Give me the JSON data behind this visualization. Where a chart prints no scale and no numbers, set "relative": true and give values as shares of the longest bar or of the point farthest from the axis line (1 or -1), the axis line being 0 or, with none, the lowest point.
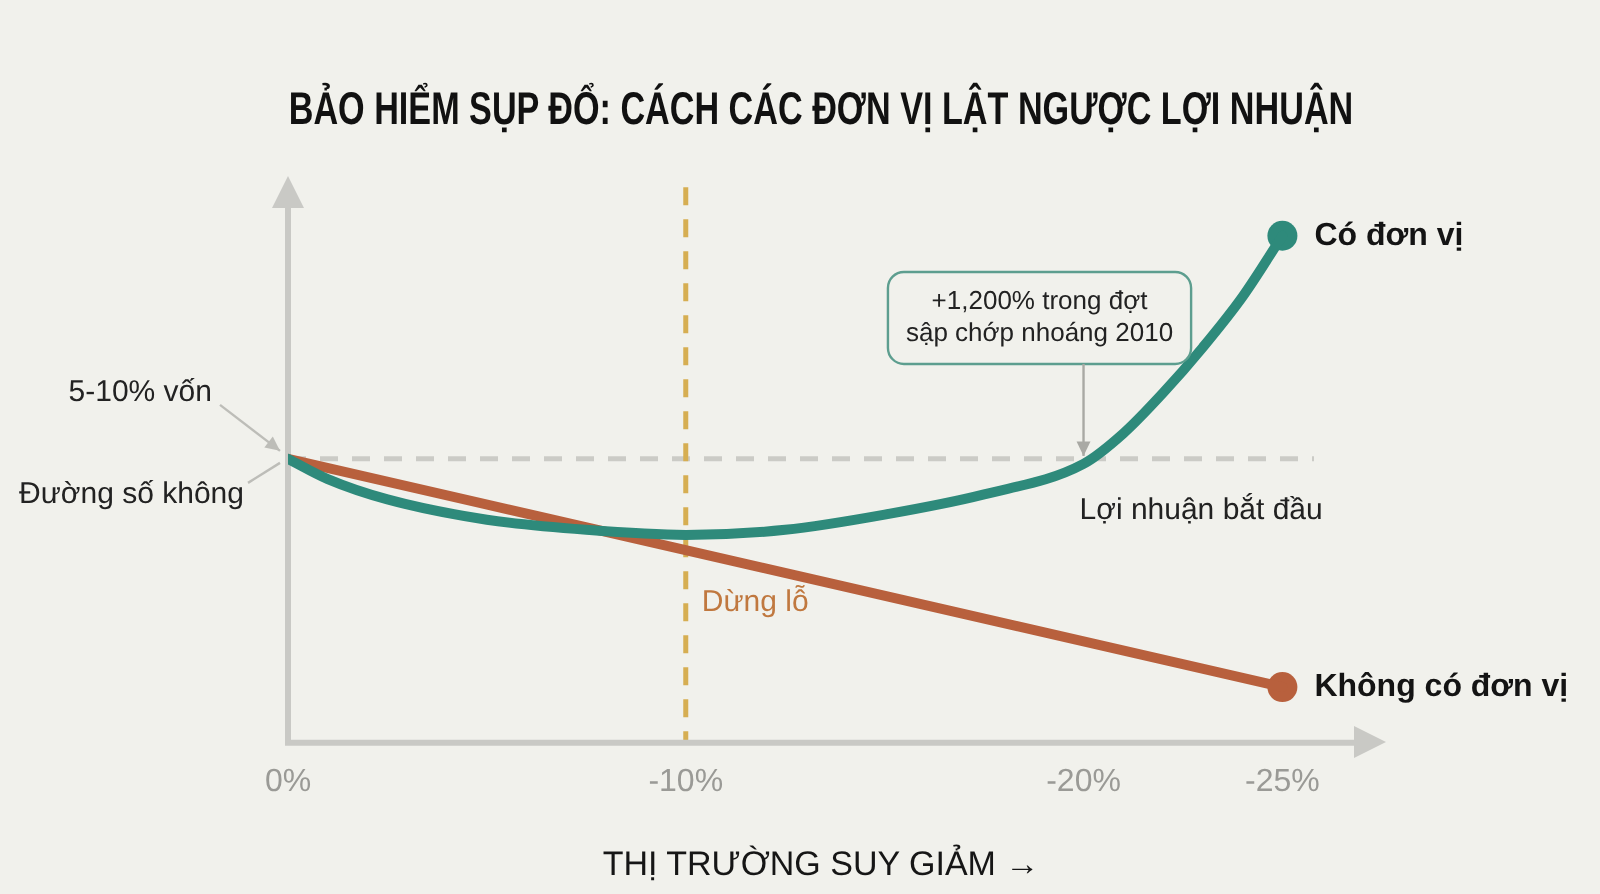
{
  "chart_data": {
    "type": "line",
    "title": "BẢO HIỂM SỤP ĐỔ: CÁCH CÁC ĐƠN VỊ LẬT NGƯỢC LỢI NHUẬN",
    "xlabel": "THỊ TRƯỜNG SUY GIẢM →",
    "relative": true,
    "xlim": [
      0,
      -26.8
    ],
    "xticks": [
      {
        "value": 0,
        "label": "0%"
      },
      {
        "value": -10,
        "label": "-10%"
      },
      {
        "value": -20,
        "label": "-20%"
      },
      {
        "value": -25,
        "label": "-25%"
      }
    ],
    "tick_labels": "x",
    "series": [
      {
        "name": "Có đơn vị",
        "color": "#2e8a7b",
        "x": [
          0,
          -1,
          -2.5,
          -5,
          -7.5,
          -10,
          -12.5,
          -15,
          -17.5,
          -20,
          -21,
          -22,
          -23,
          -24,
          -25
        ],
        "values": [
          0.56,
          0.52,
          0.48,
          0.44,
          0.42,
          0.41,
          0.42,
          0.45,
          0.49,
          0.55,
          0.61,
          0.69,
          0.78,
          0.88,
          1
        ]
      },
      {
        "name": "Không có đơn vị",
        "color": "#b8603d",
        "x": [
          0,
          -25
        ],
        "values": [
          0.56,
          0.11
        ]
      },
      {
        "type": "scatter",
        "color": "#2e8a7b",
        "x": [
          -25
        ],
        "values": [
          1
        ]
      },
      {
        "type": "scatter",
        "color": "#b8603d",
        "x": [
          -25
        ],
        "values": [
          0.11
        ]
      }
    ],
    "ref_lines": [
      {
        "axis": "y",
        "value": 0.56,
        "label": "Đường số không",
        "color": "#cbcbc6",
        "line_style": "dashed"
      },
      {
        "axis": "x",
        "value": -10,
        "label": "Dừng lỗ",
        "color": "#d6ae52",
        "line_style": "dashed"
      }
    ],
    "annotations": [
      "5-10% vốn",
      {
        "text": "+1,200% trong đợt\nsập chớp nhoáng 2010",
        "x": -20,
        "y": 0.55
      },
      {
        "text": "Lợi nhuận bắt đầu",
        "x": -20,
        "y": 0.56
      }
    ]
  }
}
